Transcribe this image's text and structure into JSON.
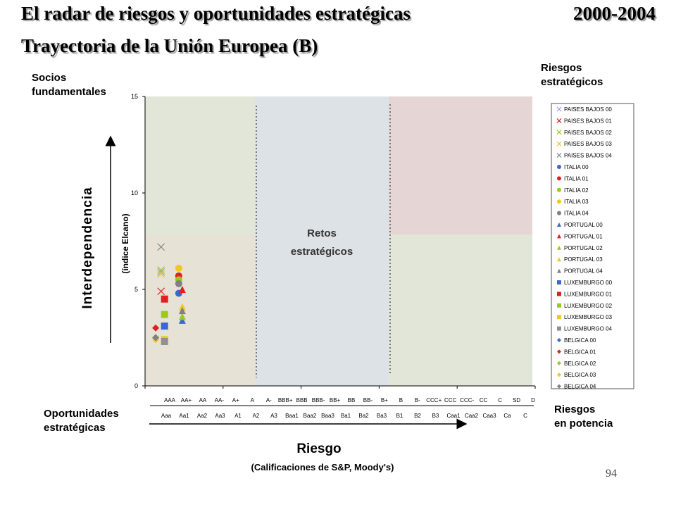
{
  "slide": {
    "title": "El radar de riesgos y oportunidades estratégicas",
    "years": "2000-2004",
    "subtitle": "Trayectoria de la Unión Europea (B)",
    "page_number": "94"
  },
  "quadrants": {
    "top_left": [
      "Socios",
      "fundamentales"
    ],
    "top_right": [
      "Riesgos",
      "estratégicos"
    ],
    "bottom_left": [
      "Oportunidades",
      "estratégicas"
    ],
    "bottom_right": [
      "Riesgos",
      "en potencia"
    ],
    "center": [
      "Retos",
      "estratégicos"
    ]
  },
  "axes": {
    "y_title": "Interdependencia",
    "y_subtitle": "(índice Elcano)",
    "x_title": "Riesgo",
    "x_subtitle": "(Calificaciones de S&P, Moody's)"
  },
  "colors": {
    "bg_tan": "#e6e2d6",
    "bg_green": "#e2e6d9",
    "bg_blue": "#dde2e6",
    "bg_pink": "#e6d5d5",
    "paises_bajos": "#5b7fc9",
    "italia": "#5b7fc9",
    "portugal": "#3a66d6",
    "luxemburgo": "#3a66d6",
    "belgica": "#3a66d6"
  },
  "chart_data": {
    "type": "scatter",
    "ylim": [
      0,
      15
    ],
    "y_ticks": [
      0,
      5,
      10,
      15
    ],
    "x_tick_labels_sp": [
      "AAA",
      "AA+",
      "AA",
      "AA-",
      "A+",
      "A",
      "A-",
      "BBB+",
      "BBB",
      "BBB-",
      "BB+",
      "BB",
      "BB-",
      "B+",
      "B",
      "B-",
      "CCC+",
      "CCC",
      "CCC-",
      "CC",
      "C",
      "SD",
      "D"
    ],
    "x_tick_labels_moodys": [
      "Aaa",
      "Aa1",
      "Aa2",
      "Aa3",
      "A1",
      "A2",
      "A3",
      "Baa1",
      "Baa2",
      "Baa3",
      "Ba1",
      "Ba2",
      "Ba3",
      "B1",
      "B2",
      "B3",
      "Caa1",
      "Caa2",
      "Caa3",
      "Ca",
      "C"
    ],
    "xlim": [
      0,
      22
    ],
    "series": [
      {
        "name": "PAISES BAJOS 00",
        "marker": "x",
        "color": "#8aa4da",
        "x": 0.9,
        "y": 5.9
      },
      {
        "name": "PAISES BAJOS 01",
        "marker": "x",
        "color": "#e02020",
        "x": 0.9,
        "y": 4.9
      },
      {
        "name": "PAISES BAJOS 02",
        "marker": "x",
        "color": "#9cc820",
        "x": 0.9,
        "y": 6.0
      },
      {
        "name": "PAISES BAJOS 03",
        "marker": "x",
        "color": "#f0c030",
        "x": 0.9,
        "y": 5.8
      },
      {
        "name": "PAISES BAJOS 04",
        "marker": "x",
        "color": "#8a8a8a",
        "x": 0.9,
        "y": 7.2
      },
      {
        "name": "ITALIA 00",
        "marker": "circle",
        "color": "#3a66d6",
        "x": 1.9,
        "y": 4.8
      },
      {
        "name": "ITALIA 01",
        "marker": "circle",
        "color": "#e02020",
        "x": 1.9,
        "y": 5.7
      },
      {
        "name": "ITALIA 02",
        "marker": "circle",
        "color": "#9cc820",
        "x": 1.9,
        "y": 5.5
      },
      {
        "name": "ITALIA 03",
        "marker": "circle",
        "color": "#f0c820",
        "x": 1.9,
        "y": 6.1
      },
      {
        "name": "ITALIA 04",
        "marker": "circle",
        "color": "#808080",
        "x": 1.9,
        "y": 5.3
      },
      {
        "name": "PORTUGAL 00",
        "marker": "triangle",
        "color": "#3a66d6",
        "x": 2.1,
        "y": 3.4
      },
      {
        "name": "PORTUGAL 01",
        "marker": "triangle",
        "color": "#e02020",
        "x": 2.1,
        "y": 5.0
      },
      {
        "name": "PORTUGAL 02",
        "marker": "triangle",
        "color": "#9cc820",
        "x": 2.1,
        "y": 3.6
      },
      {
        "name": "PORTUGAL 03",
        "marker": "triangle",
        "color": "#f0c820",
        "x": 2.1,
        "y": 4.1
      },
      {
        "name": "PORTUGAL 04",
        "marker": "triangle",
        "color": "#808080",
        "x": 2.1,
        "y": 3.9
      },
      {
        "name": "LUXEMBURGO 00",
        "marker": "square",
        "color": "#3a66d6",
        "x": 1.1,
        "y": 3.1
      },
      {
        "name": "LUXEMBURGO 01",
        "marker": "square",
        "color": "#e02020",
        "x": 1.1,
        "y": 4.5
      },
      {
        "name": "LUXEMBURGO 02",
        "marker": "square",
        "color": "#9cc820",
        "x": 1.1,
        "y": 3.7
      },
      {
        "name": "LUXEMBURGO 03",
        "marker": "square",
        "color": "#f0c820",
        "x": 1.1,
        "y": 2.4
      },
      {
        "name": "LUXEMBURGO 04",
        "marker": "square",
        "color": "#909090",
        "x": 1.1,
        "y": 2.3
      },
      {
        "name": "BELGICA 00",
        "marker": "diamond",
        "color": "#3a66d6",
        "x": 0.6,
        "y": 2.5
      },
      {
        "name": "BELGICA 01",
        "marker": "diamond",
        "color": "#e02020",
        "x": 0.6,
        "y": 3.0
      },
      {
        "name": "BELGICA 02",
        "marker": "diamond",
        "color": "#9cc820",
        "x": 0.6,
        "y": 2.5
      },
      {
        "name": "BELGICA 03",
        "marker": "diamond",
        "color": "#f0c820",
        "x": 0.6,
        "y": 2.4
      },
      {
        "name": "BELGICA 04",
        "marker": "diamond",
        "color": "#808080",
        "x": 0.6,
        "y": 2.5
      }
    ]
  }
}
